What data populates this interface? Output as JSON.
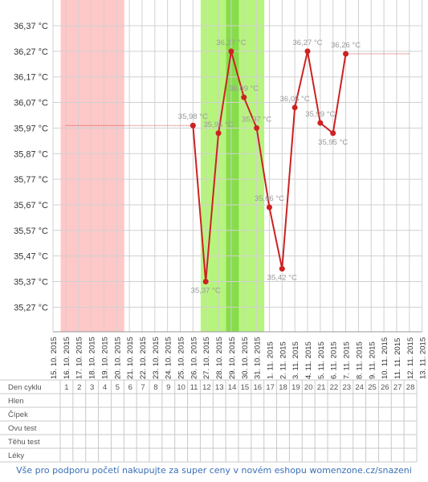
{
  "chart_data": {
    "type": "line",
    "x": [
      "15. 10. 2015",
      "16. 10. 2015",
      "17. 10. 2015",
      "18. 10. 2015",
      "19. 10. 2015",
      "20. 10. 2015",
      "21. 10. 2015",
      "22. 10. 2015",
      "23. 10. 2015",
      "24. 10. 2015",
      "25. 10. 2015",
      "26. 10. 2015",
      "27. 10. 2015",
      "28. 10. 2015",
      "29. 10. 2015",
      "30. 10. 2015",
      "31. 10. 2015",
      "1. 11. 2015",
      "2. 11. 2015",
      "3. 11. 2015",
      "4. 11. 2015",
      "5. 11. 2015",
      "6. 11. 2015",
      "7. 11. 2015",
      "8. 11. 2015",
      "9. 11. 2015",
      "10. 11. 2015",
      "11. 11. 2015",
      "12. 11. 2015",
      "13. 11. 2015"
    ],
    "yticks": [
      "36,37 °C",
      "36,27 °C",
      "36,17 °C",
      "36,07 °C",
      "35,97 °C",
      "35,87 °C",
      "35,77 °C",
      "35,67 °C",
      "35,57 °C",
      "35,47 °C",
      "35,37 °C",
      "35,27 °C"
    ],
    "ylim": [
      35.17,
      36.42
    ],
    "series": [
      {
        "values": [
          null,
          null,
          null,
          null,
          null,
          null,
          null,
          null,
          null,
          null,
          null,
          35.98,
          35.37,
          35.95,
          36.27,
          36.09,
          35.97,
          35.66,
          35.42,
          36.05,
          36.27,
          35.99,
          35.95,
          36.26,
          null,
          null,
          null,
          null,
          null,
          null
        ],
        "labels": [
          null,
          null,
          null,
          null,
          null,
          null,
          null,
          null,
          null,
          null,
          null,
          "35,98 °C",
          "35,37 °C",
          "35,95 °C",
          "36,27 °C",
          "36,09 °C",
          "35,97 °C",
          "35,66 °C",
          "35,42 °C",
          "36,05 °C",
          "36,27 °C",
          "35,99 °C",
          "35,95 °C",
          "36,26 °C",
          null,
          null,
          null,
          null,
          null,
          null
        ],
        "color": "#cc2222"
      }
    ],
    "reference_segments": [
      {
        "from_index": 1,
        "to_index": 11,
        "value": 35.98
      },
      {
        "from_index": 23,
        "to_index": 28,
        "value": 36.26
      }
    ],
    "bands": [
      {
        "from_index": 0.6,
        "to_index": 5.6,
        "color": "#ffc8c8"
      },
      {
        "from_index": 11.6,
        "to_index": 16.6,
        "color": "#b7f47e"
      },
      {
        "from_index": 13.6,
        "to_index": 14.6,
        "color": "#86dc4a"
      }
    ],
    "grid": true,
    "colors": {
      "line": "#cc2222",
      "marker": "#cc2222",
      "axis_text": "#333333",
      "grid": "#d0d0d0",
      "data_label": "#999999",
      "reference": "#cc2222"
    }
  },
  "cycle_table": {
    "row_labels": [
      "Den cyklu",
      "Hlen",
      "Čípek",
      "Ovu test",
      "Těhu test",
      "Léky"
    ],
    "first_day_index": 1,
    "days": [
      "1",
      "2",
      "3",
      "4",
      "5",
      "6",
      "7",
      "8",
      "9",
      "10",
      "11",
      "12",
      "13",
      "14",
      "15",
      "16",
      "17",
      "18",
      "19",
      "20",
      "21",
      "22",
      "23",
      "24",
      "25",
      "26",
      "27",
      "28"
    ]
  },
  "footer": {
    "text": "Vše pro podporu početí nakupujte za super ceny v novém eshopu womenzone.cz/snazeni",
    "color": "#3b6fb5"
  }
}
